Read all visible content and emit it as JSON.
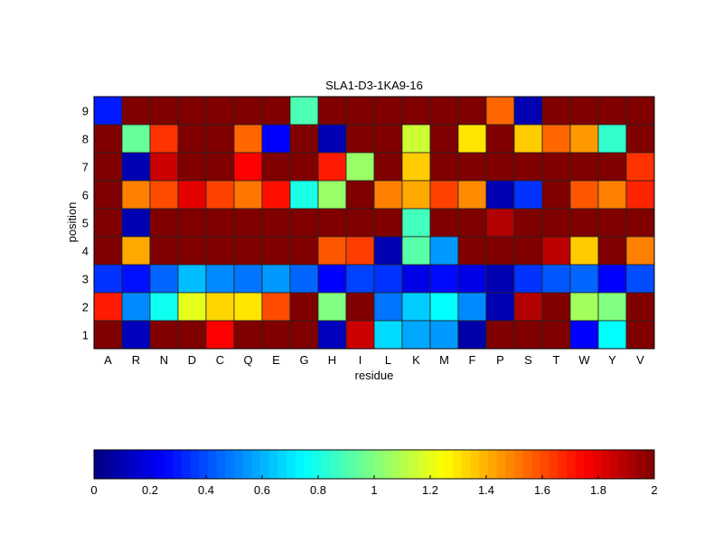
{
  "chart_data": {
    "type": "heatmap",
    "title": "SLA1-D3-1KA9-16",
    "xlabel": "residue",
    "ylabel": "position",
    "x_categories": [
      "A",
      "R",
      "N",
      "D",
      "C",
      "Q",
      "E",
      "G",
      "H",
      "I",
      "L",
      "K",
      "M",
      "F",
      "P",
      "S",
      "T",
      "W",
      "Y",
      "V"
    ],
    "y_categories": [
      "9",
      "8",
      "7",
      "6",
      "5",
      "4",
      "3",
      "2",
      "1"
    ],
    "values": [
      [
        0.3,
        2,
        2,
        2,
        2,
        2,
        2,
        0.9,
        2,
        2,
        2,
        2,
        2,
        2,
        1.55,
        0.1,
        2,
        2,
        2,
        2
      ],
      [
        2,
        0.95,
        1.65,
        2,
        2,
        1.55,
        0.25,
        2,
        0.1,
        2,
        2,
        1.15,
        2,
        1.3,
        2,
        1.35,
        1.55,
        1.45,
        0.85,
        2
      ],
      [
        2,
        0.1,
        1.85,
        2,
        2,
        1.75,
        2,
        2,
        1.7,
        1.05,
        2,
        1.35,
        2,
        2,
        2,
        2,
        2,
        2,
        2,
        1.65
      ],
      [
        2,
        1.5,
        1.6,
        1.8,
        1.62,
        1.52,
        1.72,
        0.8,
        1.05,
        2,
        1.5,
        1.42,
        1.62,
        1.48,
        0.1,
        0.35,
        2,
        1.58,
        1.5,
        1.68
      ],
      [
        2,
        0.1,
        2,
        2,
        2,
        2,
        2,
        2,
        2,
        2,
        2,
        0.88,
        2,
        2,
        1.9,
        2,
        2,
        2,
        2,
        2
      ],
      [
        2,
        1.42,
        2,
        2,
        2,
        2,
        2,
        2,
        1.58,
        1.63,
        0.1,
        0.92,
        0.55,
        2,
        2,
        2,
        1.88,
        1.35,
        2,
        1.5
      ],
      [
        0.35,
        0.28,
        0.45,
        0.62,
        0.52,
        0.48,
        0.55,
        0.45,
        0.25,
        0.38,
        0.35,
        0.2,
        0.27,
        0.2,
        0.1,
        0.35,
        0.42,
        0.45,
        0.25,
        0.4
      ],
      [
        1.7,
        0.52,
        0.78,
        1.2,
        1.33,
        1.3,
        1.6,
        2,
        1.0,
        2,
        0.48,
        0.65,
        0.75,
        0.52,
        0.1,
        1.9,
        2,
        1.07,
        1.0,
        2
      ],
      [
        2,
        0.12,
        2,
        2,
        1.75,
        2,
        2,
        2,
        0.12,
        1.85,
        0.68,
        0.58,
        0.55,
        0.08,
        2,
        2,
        2,
        0.25,
        0.75,
        2
      ]
    ],
    "colormap": "jet",
    "clim": [
      0,
      2
    ],
    "colorbar": {
      "placement": "bottom",
      "ticks": [
        0,
        0.2,
        0.4,
        0.6,
        0.8,
        1,
        1.2,
        1.4,
        1.6,
        1.8,
        2
      ],
      "tick_labels": [
        "0",
        "0.2",
        "0.4",
        "0.6",
        "0.8",
        "1",
        "1.2",
        "1.4",
        "1.6",
        "1.8",
        "2"
      ]
    }
  }
}
